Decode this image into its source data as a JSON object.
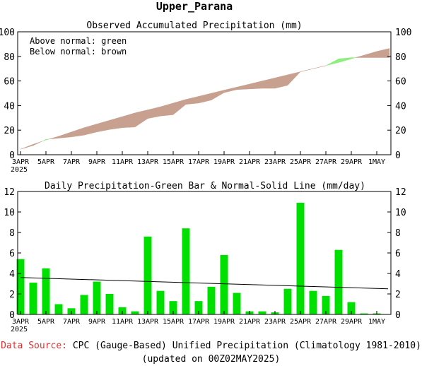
{
  "page_title": "Upper_Parana",
  "footer": {
    "source_label": "Data Source:",
    "source_text": " CPC (Gauge-Based) Unified Precipitation (Climatology 1981-2010)",
    "updated": "(updated on 00Z02MAY2025)"
  },
  "colors": {
    "green": "#00e000",
    "light_green": "#90ee80",
    "brown": "#c8a090",
    "line": "#000000",
    "source_label": "#e03030"
  },
  "x_ticks": [
    "3APR",
    "5APR",
    "7APR",
    "9APR",
    "11APR",
    "13APR",
    "15APR",
    "17APR",
    "19APR",
    "21APR",
    "23APR",
    "25APR",
    "27APR",
    "29APR",
    "1MAY"
  ],
  "x_year": "2025",
  "chart_data": [
    {
      "type": "area",
      "title": "Observed Accumulated Precipitation (mm)",
      "legend_lines": [
        "Above normal: green",
        "Below normal: brown"
      ],
      "legend_placement": "top-left",
      "ylim": [
        0,
        100
      ],
      "yticks": [
        0,
        20,
        40,
        60,
        80,
        100
      ],
      "x": [
        "3APR",
        "4APR",
        "5APR",
        "6APR",
        "7APR",
        "8APR",
        "9APR",
        "10APR",
        "11APR",
        "12APR",
        "13APR",
        "14APR",
        "15APR",
        "16APR",
        "17APR",
        "18APR",
        "19APR",
        "20APR",
        "21APR",
        "22APR",
        "23APR",
        "24APR",
        "25APR",
        "26APR",
        "27APR",
        "28APR",
        "29APR",
        "30APR",
        "1MAY",
        "2MAY"
      ],
      "series": [
        {
          "name": "observed",
          "values": [
            4.5,
            7.5,
            12.5,
            13.5,
            14.5,
            16,
            18.5,
            20.5,
            22,
            22.5,
            29.5,
            31.5,
            32.5,
            41,
            42,
            44.5,
            50.5,
            53,
            53.5,
            54,
            54,
            56.5,
            67.5,
            70,
            72.5,
            78,
            79,
            79,
            79,
            79
          ]
        },
        {
          "name": "normal",
          "values": [
            4.5,
            8.5,
            12,
            15,
            18.5,
            22,
            25,
            28,
            31,
            34,
            36.5,
            39,
            42,
            45,
            47.5,
            50,
            52.5,
            55,
            57.5,
            60,
            62.5,
            65,
            67.5,
            70,
            72.5,
            75,
            78,
            81,
            84,
            86.5
          ]
        }
      ]
    },
    {
      "type": "bar",
      "title": "Daily Precipitation-Green Bar & Normal-Solid Line (mm/day)",
      "ylim": [
        0,
        12
      ],
      "yticks": [
        0,
        2,
        4,
        6,
        8,
        10,
        12
      ],
      "categories": [
        "3APR",
        "4APR",
        "5APR",
        "6APR",
        "7APR",
        "8APR",
        "9APR",
        "10APR",
        "11APR",
        "12APR",
        "13APR",
        "14APR",
        "15APR",
        "16APR",
        "17APR",
        "18APR",
        "19APR",
        "20APR",
        "21APR",
        "22APR",
        "23APR",
        "24APR",
        "25APR",
        "26APR",
        "27APR",
        "28APR",
        "29APR",
        "30APR",
        "1MAY",
        "2MAY"
      ],
      "values": [
        5.4,
        3.1,
        4.5,
        1.0,
        0.6,
        1.9,
        3.2,
        2.0,
        0.7,
        0.3,
        7.6,
        2.3,
        1.3,
        8.4,
        1.3,
        2.7,
        5.8,
        2.1,
        0.3,
        0.3,
        0.2,
        2.5,
        10.9,
        2.3,
        1.8,
        6.3,
        1.2,
        0.1,
        0.1,
        0.0
      ],
      "normal_line": {
        "start": 3.6,
        "end": 2.5
      }
    }
  ]
}
